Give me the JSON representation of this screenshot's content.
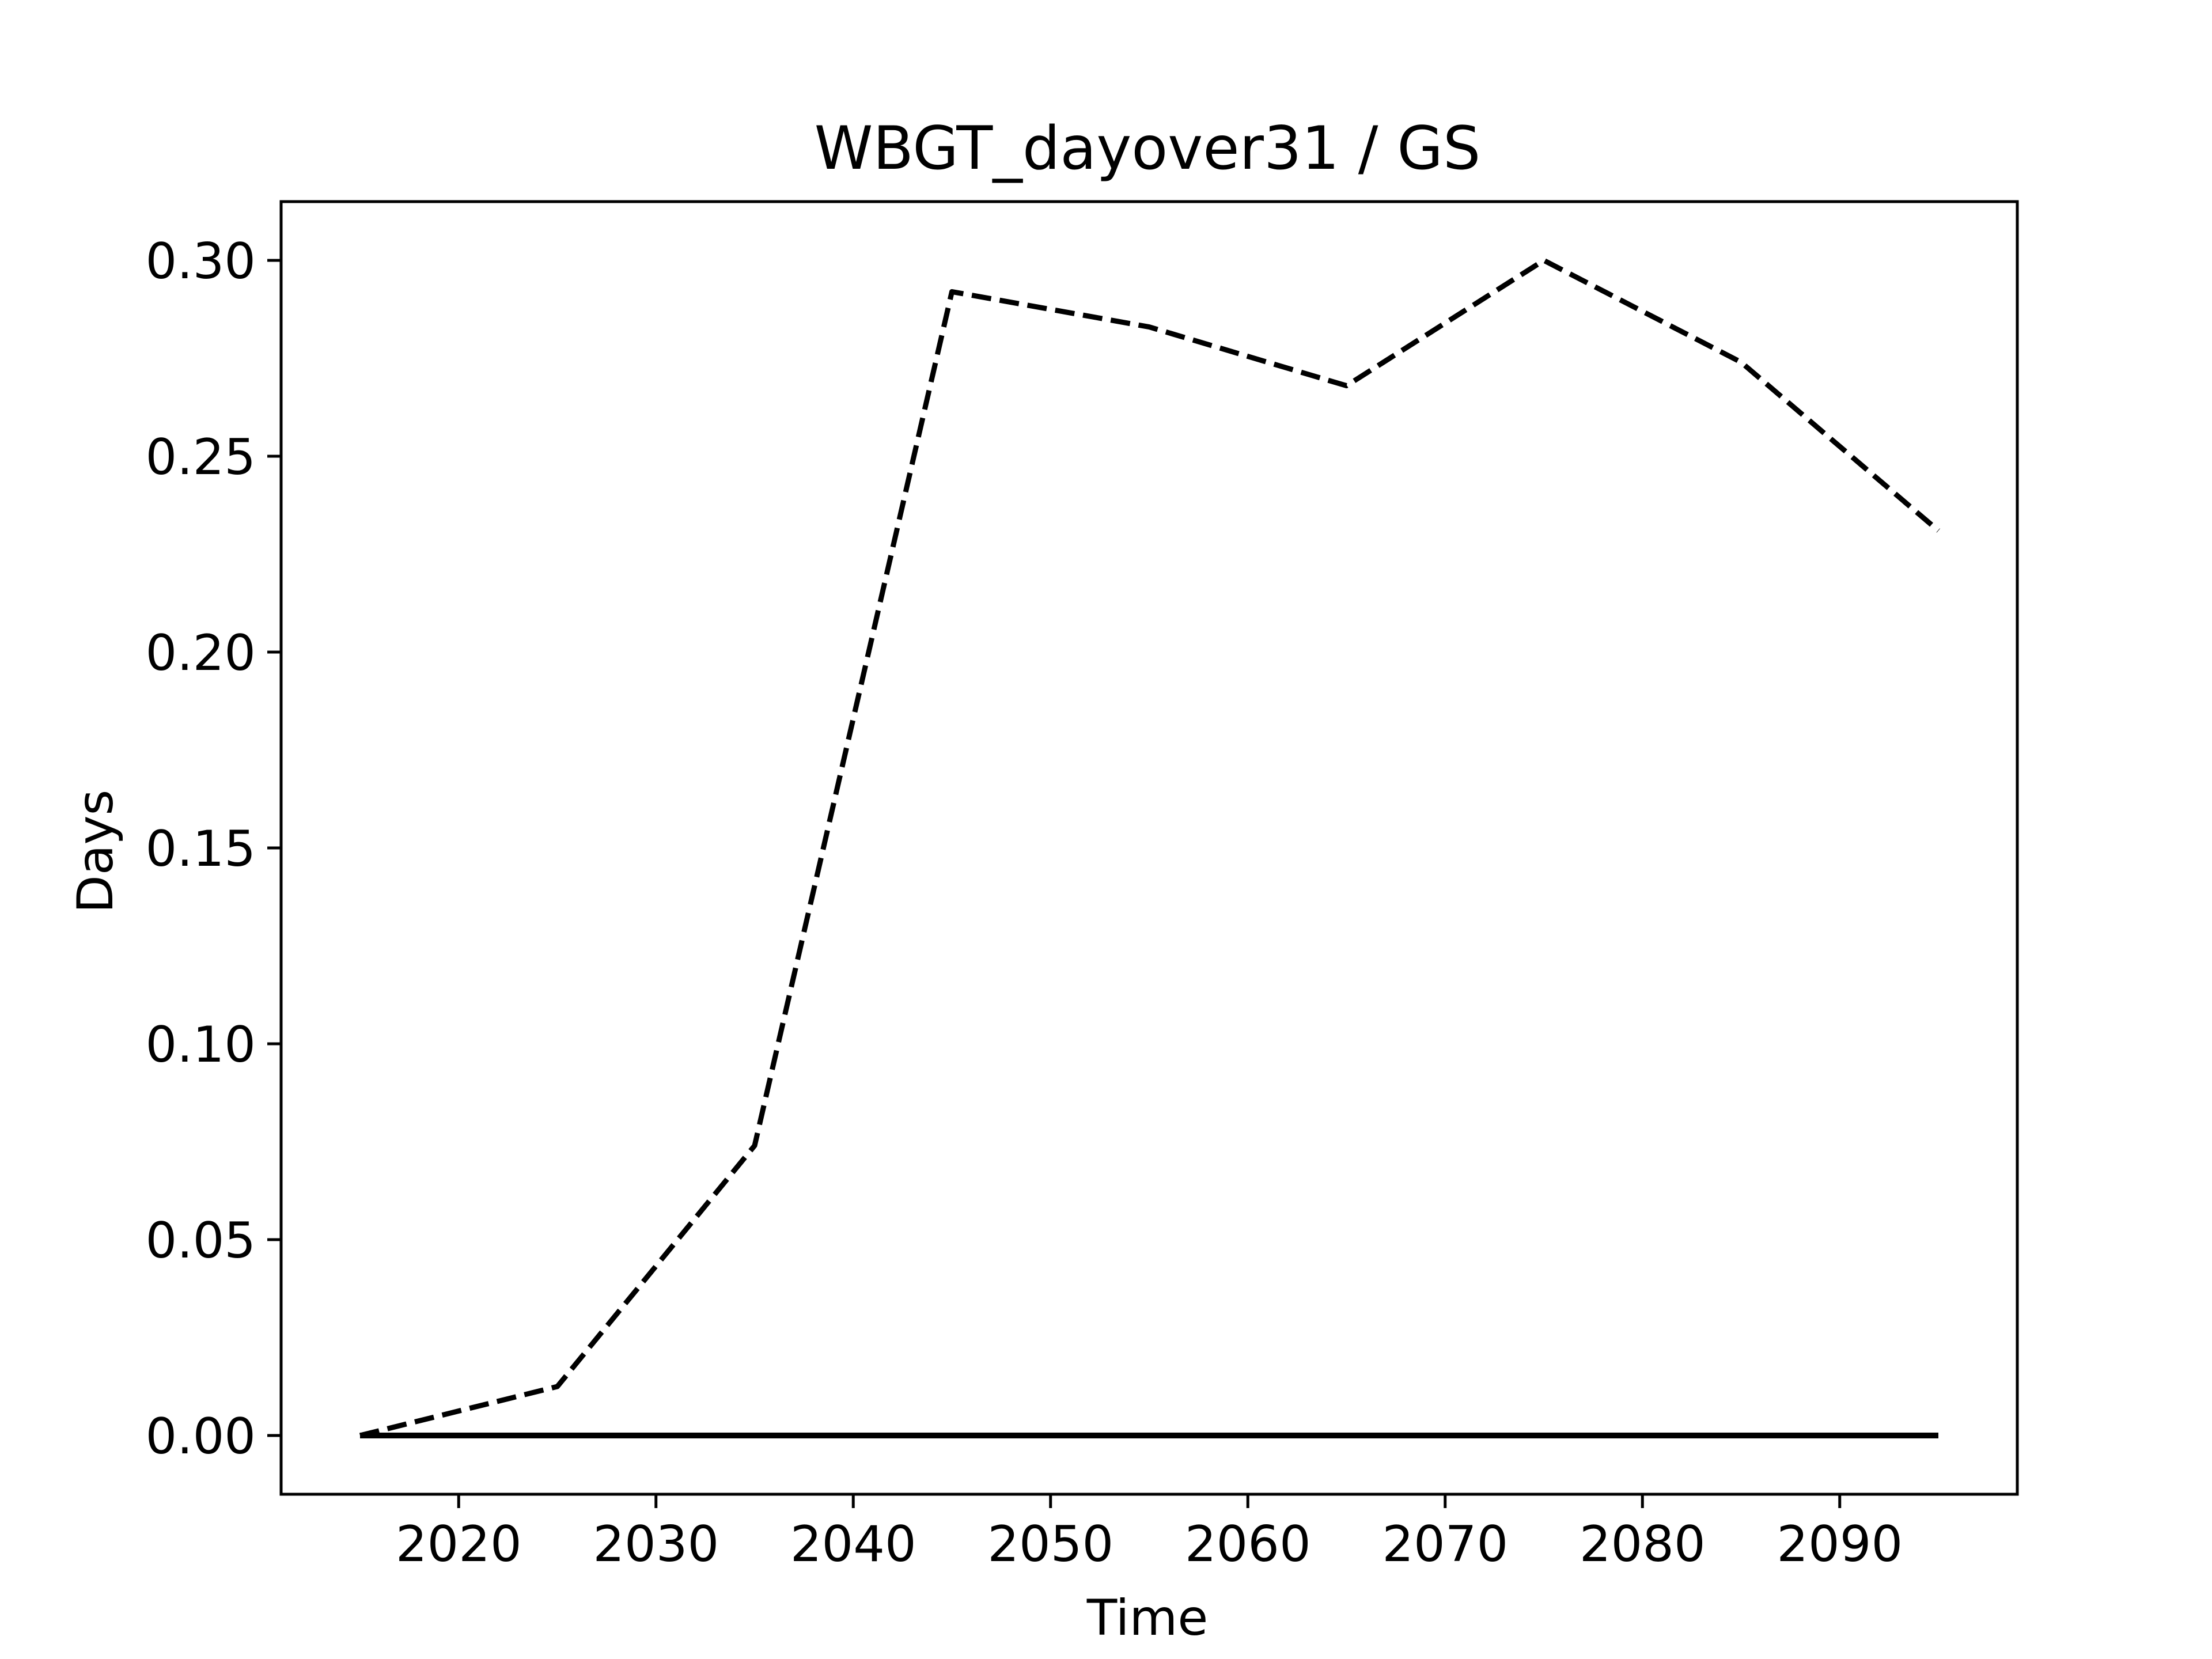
{
  "chart_data": {
    "type": "line",
    "title": "WBGT_dayover31 / GS",
    "xlabel": "Time",
    "ylabel": "Days",
    "xlim": [
      2011,
      2099
    ],
    "ylim": [
      -0.015,
      0.315
    ],
    "xticks": [
      2020,
      2030,
      2040,
      2050,
      2060,
      2070,
      2080,
      2090
    ],
    "yticks": [
      0.0,
      0.05,
      0.1,
      0.15,
      0.2,
      0.25,
      0.3
    ],
    "ytick_labels": [
      "0.00",
      "0.05",
      "0.10",
      "0.15",
      "0.20",
      "0.25",
      "0.30"
    ],
    "grid": false,
    "legend": "none",
    "x": [
      2015,
      2025,
      2035,
      2045,
      2055,
      2065,
      2075,
      2085,
      2095
    ],
    "series": [
      {
        "style": "dashed",
        "color": "#000000",
        "values": [
          0.0,
          0.0125,
          0.074,
          0.292,
          0.283,
          0.268,
          0.3,
          0.274,
          0.231
        ]
      },
      {
        "style": "solid",
        "color": "#000000",
        "values": [
          0.0,
          0.0,
          0.0,
          0.0,
          0.0,
          0.0,
          0.0,
          0.0,
          0.0
        ]
      }
    ]
  }
}
